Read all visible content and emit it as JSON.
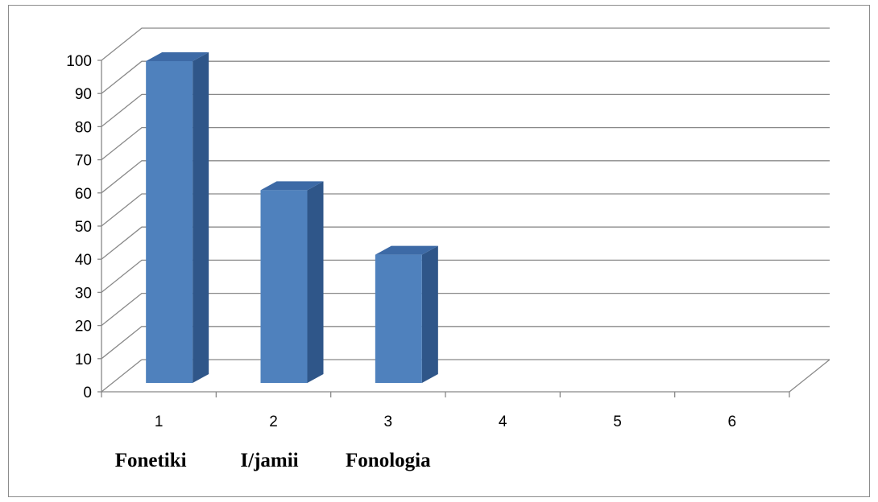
{
  "chart_data": {
    "type": "bar",
    "style": "3d-column",
    "categories": [
      "1",
      "2",
      "3",
      "4",
      "5",
      "6"
    ],
    "category_names": [
      "Fonetiki",
      "I/jamii",
      "Fonologia"
    ],
    "series": [
      {
        "values": [
          100,
          60,
          40,
          null,
          null,
          null
        ]
      }
    ],
    "title": "",
    "xlabel": "",
    "ylabel": "",
    "ylim": [
      0,
      100
    ],
    "yticks": [
      0,
      10,
      20,
      30,
      40,
      50,
      60,
      70,
      80,
      90,
      100
    ],
    "grid": true,
    "legend": "none",
    "colors": {
      "bar_front": "#4f81bd",
      "bar_side": "#2f5689",
      "bar_top": "#3d6aa6",
      "gridline": "#898989",
      "axis": "#898989",
      "frame_border": "#8c8c8c"
    }
  }
}
